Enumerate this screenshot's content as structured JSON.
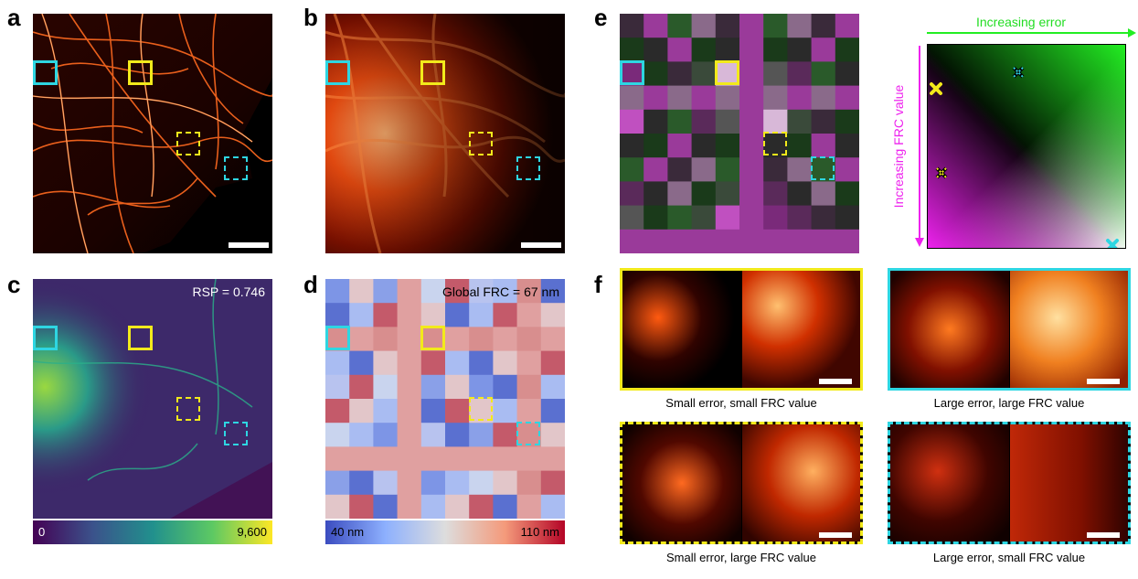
{
  "panels": {
    "a": "a",
    "b": "b",
    "c": "c",
    "d": "d",
    "e": "e",
    "f": "f"
  },
  "panel_c": {
    "rsp_text": "RSP = 0.746",
    "cbar_min": "0",
    "cbar_max": "9,600"
  },
  "panel_d": {
    "frc_text": "Global FRC = 67 nm",
    "cbar_min": "40 nm",
    "cbar_max": "110 nm"
  },
  "legend": {
    "x_label": "Increasing error",
    "y_label": "Increasing FRC value"
  },
  "insets": [
    {
      "label": "Small error, small FRC value"
    },
    {
      "label": "Large error, large FRC value"
    },
    {
      "label": "Small error, large FRC value"
    },
    {
      "label": "Large error, small FRC value"
    }
  ],
  "colors": {
    "cyan": "#2ed6e2",
    "yellow": "#f2ea1b",
    "legend_green": "#22ee22",
    "legend_magenta": "#ee22ee"
  }
}
